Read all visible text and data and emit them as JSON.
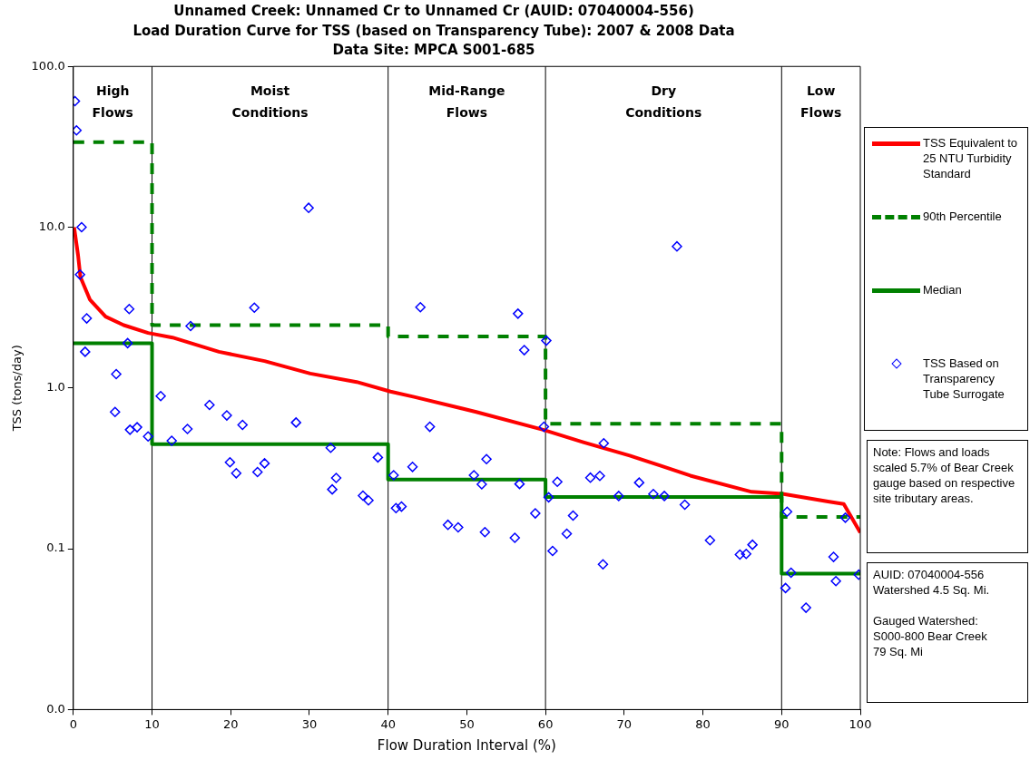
{
  "chart_data": {
    "type": "line",
    "title": "Unnamed Creek: Unnamed Cr to Unnamed Cr (AUID: 07040004-556)\nLoad Duration Curve for TSS (based on Transparency Tube): 2007 & 2008 Data\nData Site: MPCA S001-685",
    "xlabel": "Flow Duration Interval (%)",
    "ylabel": "TSS (tons/day)",
    "log": "y",
    "grid": false,
    "legend": "right",
    "xlim": [
      0,
      100
    ],
    "xticks": [
      0,
      10,
      20,
      30,
      40,
      50,
      60,
      70,
      80,
      90,
      100
    ],
    "ylim": [
      0.01,
      100
    ],
    "yticks": [
      {
        "value": 0.01,
        "label": "0.0"
      },
      {
        "value": 0.1,
        "label": "0.1"
      },
      {
        "value": 1,
        "label": "1.0"
      },
      {
        "value": 10,
        "label": "10.0"
      },
      {
        "value": 100,
        "label": "100.0"
      }
    ],
    "ref_lines": [
      {
        "axis": "x",
        "value": 10,
        "color": "#000000"
      },
      {
        "axis": "x",
        "value": 40,
        "color": "#000000"
      },
      {
        "axis": "x",
        "value": 60,
        "color": "#000000"
      },
      {
        "axis": "x",
        "value": 90,
        "color": "#000000"
      }
    ],
    "annotations": [
      "High Flows",
      "Moist Conditions",
      "Mid-Range Flows",
      "Dry Conditions",
      "Low Flows",
      "Note: Flows and loads scaled 5.7% of Bear Creek gauge based on respective site tributary areas.",
      "AUID: 07040004-556\nWatershed 4.5 Sq. Mi.\n\nGauged Watershed:\nS000-800 Bear Creek\n79 Sq. Mi"
    ],
    "series": [
      {
        "name": "TSS Equivalent to 25 NTU Turbidity Standard",
        "color": "#ff0000",
        "line_style": "solid",
        "marker": "none",
        "x": [
          0.1,
          0.6,
          0.9,
          2.1,
          4.1,
          6.4,
          9.5,
          12.6,
          18.5,
          24.3,
          30.1,
          36,
          40.3,
          43.3,
          51.2,
          59.7,
          64.8,
          70.7,
          74.5,
          78.4,
          86.2,
          90.1,
          95.9,
          97.9,
          100
        ],
        "values": [
          10,
          6.7,
          4.9,
          3.55,
          2.78,
          2.46,
          2.2,
          2.06,
          1.68,
          1.47,
          1.23,
          1.09,
          0.95,
          0.88,
          0.71,
          0.55,
          0.46,
          0.38,
          0.33,
          0.285,
          0.226,
          0.22,
          0.197,
          0.19,
          0.126
        ]
      },
      {
        "name": "90th Percentile",
        "color": "#008000",
        "line_style": "dashed",
        "marker": "none",
        "x": [
          0,
          10,
          10,
          40,
          40,
          60,
          60,
          90,
          90,
          100
        ],
        "values": [
          33.8,
          33.8,
          2.46,
          2.46,
          2.09,
          2.09,
          0.6,
          0.6,
          0.158,
          0.158
        ]
      },
      {
        "name": "Median",
        "color": "#008000",
        "line_style": "solid",
        "marker": "none",
        "x": [
          0,
          10,
          10,
          40,
          40,
          60,
          60,
          90,
          90,
          100
        ],
        "values": [
          1.9,
          1.9,
          0.447,
          0.447,
          0.27,
          0.27,
          0.21,
          0.21,
          0.07,
          0.07
        ]
      },
      {
        "name": "TSS Based on Transparency Tube Surrogate",
        "type": "scatter",
        "color": "#0000ff",
        "marker": "diamond",
        "x": [
          0.2,
          0.4,
          1.05,
          0.85,
          1.7,
          1.5,
          7.1,
          6.9,
          5.45,
          5.3,
          7.2,
          8.1,
          9.5,
          11.1,
          12.5,
          14.9,
          14.5,
          17.3,
          19.5,
          21.5,
          23.0,
          28.3,
          29.9,
          32.7,
          38.7,
          19.9,
          20.7,
          23.4,
          24.3,
          32.9,
          33.4,
          36.8,
          37.5,
          44.1,
          56.5,
          60.1,
          57.3,
          76.7,
          45.3,
          59.8,
          67.4,
          40.7,
          43.1,
          41.0,
          41.7,
          52.5,
          50.9,
          51.9,
          56.7,
          47.6,
          48.9,
          52.3,
          56.1,
          58.7,
          60.4,
          61.5,
          63.5,
          62.7,
          60.9,
          65.7,
          66.9,
          67.3,
          69.3,
          71.9,
          73.7,
          75.1,
          77.7,
          80.9,
          84.7,
          85.5,
          86.3,
          90.7,
          91.2,
          90.5,
          93.1,
          96.6,
          96.9,
          98.1,
          99.8
        ],
        "values": [
          60.8,
          40,
          10,
          5.07,
          2.71,
          1.68,
          3.1,
          1.9,
          1.22,
          0.71,
          0.55,
          0.57,
          0.5,
          0.89,
          0.47,
          2.43,
          0.556,
          0.785,
          0.675,
          0.59,
          3.16,
          0.61,
          13.2,
          0.425,
          0.37,
          0.345,
          0.295,
          0.3,
          0.34,
          0.234,
          0.276,
          0.214,
          0.2,
          3.18,
          2.9,
          1.97,
          1.72,
          7.6,
          0.574,
          0.574,
          0.453,
          0.287,
          0.323,
          0.179,
          0.183,
          0.361,
          0.287,
          0.252,
          0.253,
          0.141,
          0.136,
          0.127,
          0.117,
          0.166,
          0.209,
          0.261,
          0.161,
          0.124,
          0.097,
          0.277,
          0.284,
          0.08,
          0.213,
          0.258,
          0.219,
          0.213,
          0.188,
          0.113,
          0.092,
          0.093,
          0.106,
          0.17,
          0.071,
          0.057,
          0.043,
          0.089,
          0.063,
          0.156,
          0.069
        ]
      }
    ]
  }
}
